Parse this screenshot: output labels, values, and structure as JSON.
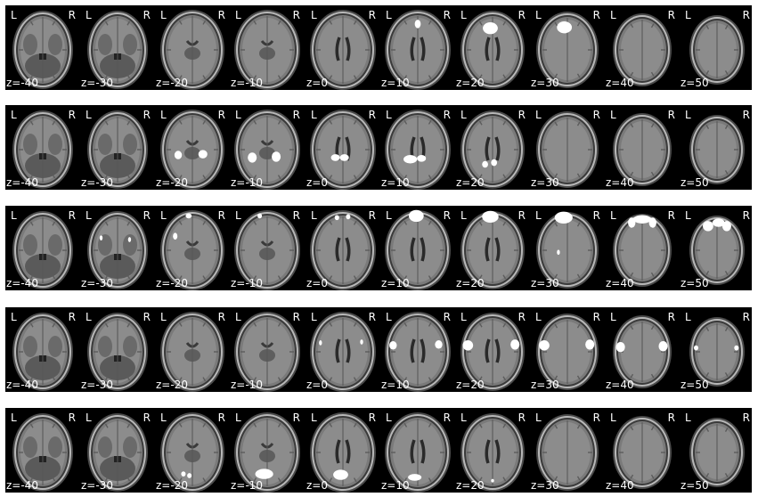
{
  "figure": {
    "side_labels": {
      "left": "L",
      "right": "R"
    },
    "colors": {
      "background": "#000000",
      "activation": "#ffffff",
      "label": "#ffffff"
    },
    "panels": [
      {
        "slices": [
          {
            "z": "z=-40",
            "blobs": []
          },
          {
            "z": "z=-30",
            "blobs": []
          },
          {
            "z": "z=-20",
            "blobs": []
          },
          {
            "z": "z=-10",
            "blobs": []
          },
          {
            "z": "z=0",
            "blobs": []
          },
          {
            "z": "z=10",
            "blobs": [
              [
                0.5,
                0.22,
                0.04,
                0.05
              ]
            ]
          },
          {
            "z": "z=20",
            "blobs": [
              [
                0.47,
                0.27,
                0.1,
                0.07
              ]
            ]
          },
          {
            "z": "z=30",
            "blobs": [
              [
                0.46,
                0.26,
                0.1,
                0.07
              ]
            ]
          },
          {
            "z": "z=40",
            "blobs": []
          },
          {
            "z": "z=50",
            "blobs": []
          }
        ]
      },
      {
        "slices": [
          {
            "z": "z=-40",
            "blobs": []
          },
          {
            "z": "z=-30",
            "blobs": []
          },
          {
            "z": "z=-20",
            "blobs": [
              [
                0.31,
                0.59,
                0.05,
                0.05
              ],
              [
                0.64,
                0.58,
                0.06,
                0.05
              ]
            ]
          },
          {
            "z": "z=-10",
            "blobs": [
              [
                0.3,
                0.62,
                0.06,
                0.06
              ],
              [
                0.62,
                0.61,
                0.06,
                0.06
              ]
            ]
          },
          {
            "z": "z=0",
            "blobs": [
              [
                0.4,
                0.62,
                0.06,
                0.04
              ],
              [
                0.52,
                0.62,
                0.06,
                0.04
              ]
            ]
          },
          {
            "z": "z=10",
            "blobs": [
              [
                0.4,
                0.64,
                0.09,
                0.05
              ],
              [
                0.55,
                0.63,
                0.06,
                0.04
              ]
            ]
          },
          {
            "z": "z=20",
            "blobs": [
              [
                0.4,
                0.7,
                0.04,
                0.04
              ],
              [
                0.52,
                0.68,
                0.04,
                0.04
              ]
            ]
          },
          {
            "z": "z=30",
            "blobs": []
          },
          {
            "z": "z=40",
            "blobs": []
          },
          {
            "z": "z=50",
            "blobs": []
          }
        ]
      },
      {
        "slices": [
          {
            "z": "z=-40",
            "blobs": []
          },
          {
            "z": "z=-30",
            "blobs": [
              [
                0.28,
                0.38,
                0.02,
                0.03
              ],
              [
                0.66,
                0.4,
                0.02,
                0.03
              ]
            ]
          },
          {
            "z": "z=-20",
            "blobs": [
              [
                0.45,
                0.12,
                0.04,
                0.03
              ],
              [
                0.27,
                0.36,
                0.03,
                0.04
              ]
            ]
          },
          {
            "z": "z=-10",
            "blobs": [
              [
                0.4,
                0.12,
                0.03,
                0.03
              ]
            ]
          },
          {
            "z": "z=0",
            "blobs": [
              [
                0.42,
                0.14,
                0.03,
                0.03
              ],
              [
                0.57,
                0.13,
                0.03,
                0.03
              ]
            ]
          },
          {
            "z": "z=10",
            "blobs": [
              [
                0.48,
                0.12,
                0.1,
                0.07
              ]
            ]
          },
          {
            "z": "z=20",
            "blobs": [
              [
                0.47,
                0.13,
                0.11,
                0.07
              ]
            ]
          },
          {
            "z": "z=30",
            "blobs": [
              [
                0.45,
                0.14,
                0.12,
                0.07
              ],
              [
                0.38,
                0.55,
                0.02,
                0.03
              ]
            ]
          },
          {
            "z": "z=40",
            "blobs": [
              [
                0.36,
                0.2,
                0.05,
                0.06
              ],
              [
                0.5,
                0.16,
                0.12,
                0.05
              ],
              [
                0.64,
                0.2,
                0.05,
                0.06
              ]
            ]
          },
          {
            "z": "z=50",
            "blobs": [
              [
                0.38,
                0.24,
                0.07,
                0.06
              ],
              [
                0.52,
                0.2,
                0.08,
                0.05
              ],
              [
                0.63,
                0.24,
                0.06,
                0.06
              ]
            ]
          }
        ]
      },
      {
        "slices": [
          {
            "z": "z=-40",
            "blobs": []
          },
          {
            "z": "z=-30",
            "blobs": []
          },
          {
            "z": "z=-20",
            "blobs": []
          },
          {
            "z": "z=-10",
            "blobs": []
          },
          {
            "z": "z=0",
            "blobs": [
              [
                0.2,
                0.42,
                0.02,
                0.03
              ],
              [
                0.75,
                0.41,
                0.02,
                0.03
              ]
            ]
          },
          {
            "z": "z=10",
            "blobs": [
              [
                0.17,
                0.45,
                0.05,
                0.05
              ],
              [
                0.78,
                0.44,
                0.05,
                0.05
              ]
            ]
          },
          {
            "z": "z=20",
            "blobs": [
              [
                0.17,
                0.45,
                0.07,
                0.06
              ],
              [
                0.8,
                0.44,
                0.06,
                0.06
              ]
            ]
          },
          {
            "z": "z=30",
            "blobs": [
              [
                0.19,
                0.45,
                0.07,
                0.06
              ],
              [
                0.8,
                0.44,
                0.06,
                0.06
              ]
            ]
          },
          {
            "z": "z=40",
            "blobs": [
              [
                0.21,
                0.47,
                0.06,
                0.06
              ],
              [
                0.78,
                0.46,
                0.06,
                0.06
              ]
            ]
          },
          {
            "z": "z=50",
            "blobs": [
              [
                0.22,
                0.48,
                0.03,
                0.03
              ],
              [
                0.76,
                0.48,
                0.03,
                0.03
              ]
            ]
          }
        ]
      },
      {
        "slices": [
          {
            "z": "z=-40",
            "blobs": []
          },
          {
            "z": "z=-30",
            "blobs": []
          },
          {
            "z": "z=-20",
            "blobs": [
              [
                0.38,
                0.78,
                0.03,
                0.03
              ],
              [
                0.46,
                0.8,
                0.03,
                0.03
              ]
            ]
          },
          {
            "z": "z=-10",
            "blobs": [
              [
                0.46,
                0.78,
                0.12,
                0.06
              ]
            ]
          },
          {
            "z": "z=0",
            "blobs": [
              [
                0.47,
                0.79,
                0.1,
                0.06
              ]
            ]
          },
          {
            "z": "z=10",
            "blobs": [
              [
                0.46,
                0.82,
                0.09,
                0.04
              ]
            ]
          },
          {
            "z": "z=20",
            "blobs": [
              [
                0.5,
                0.86,
                0.02,
                0.02
              ]
            ]
          },
          {
            "z": "z=30",
            "blobs": []
          },
          {
            "z": "z=40",
            "blobs": []
          },
          {
            "z": "z=50",
            "blobs": []
          }
        ]
      }
    ]
  }
}
